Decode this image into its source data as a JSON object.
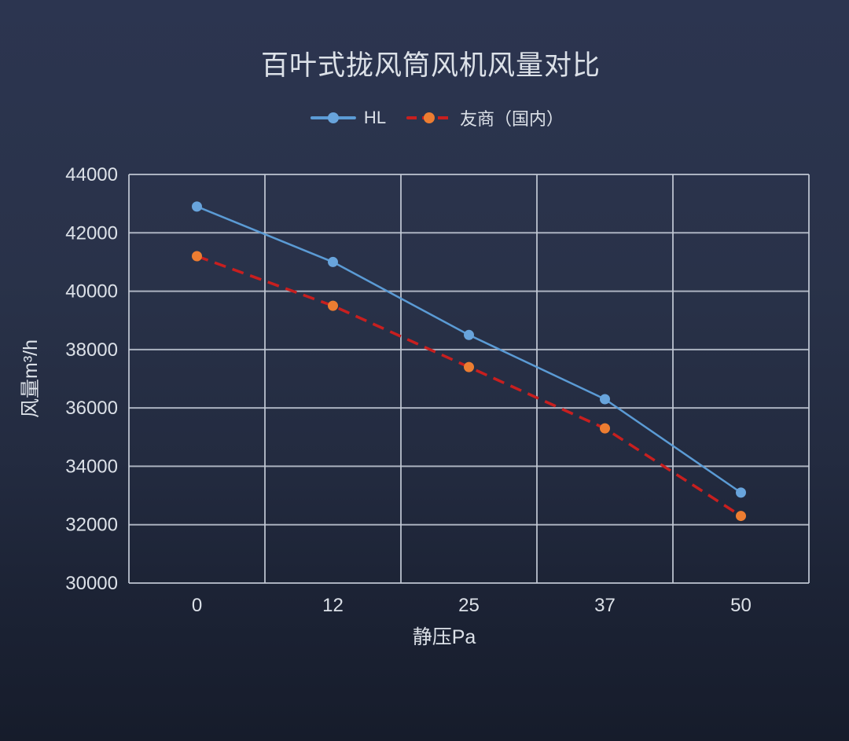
{
  "page": {
    "background_top": "#2c3550",
    "background_bottom": "#161c2b"
  },
  "chart_data": {
    "type": "line",
    "title": "百叶式拢风筒风机风量对比",
    "xlabel": "静压Pa",
    "ylabel": "风量m³/h",
    "categories": [
      "0",
      "12",
      "25",
      "37",
      "50"
    ],
    "yticks": [
      30000,
      32000,
      34000,
      36000,
      38000,
      40000,
      42000,
      44000
    ],
    "ylim": [
      30000,
      44000
    ],
    "grid": true,
    "legend_position": "top-center",
    "grid_color": "#c3cad6",
    "text_color": "#dce1e8",
    "series": [
      {
        "name": "HL",
        "values": [
          42900,
          41000,
          38500,
          36300,
          33100
        ],
        "line_color": "#5b9bd5",
        "marker_color": "#68a4dc",
        "line_style": "solid"
      },
      {
        "name": "友商（国内）",
        "values": [
          41200,
          39500,
          37400,
          35300,
          32300
        ],
        "line_color": "#c81f1f",
        "marker_color": "#ed7d31",
        "line_style": "dashed"
      }
    ]
  }
}
